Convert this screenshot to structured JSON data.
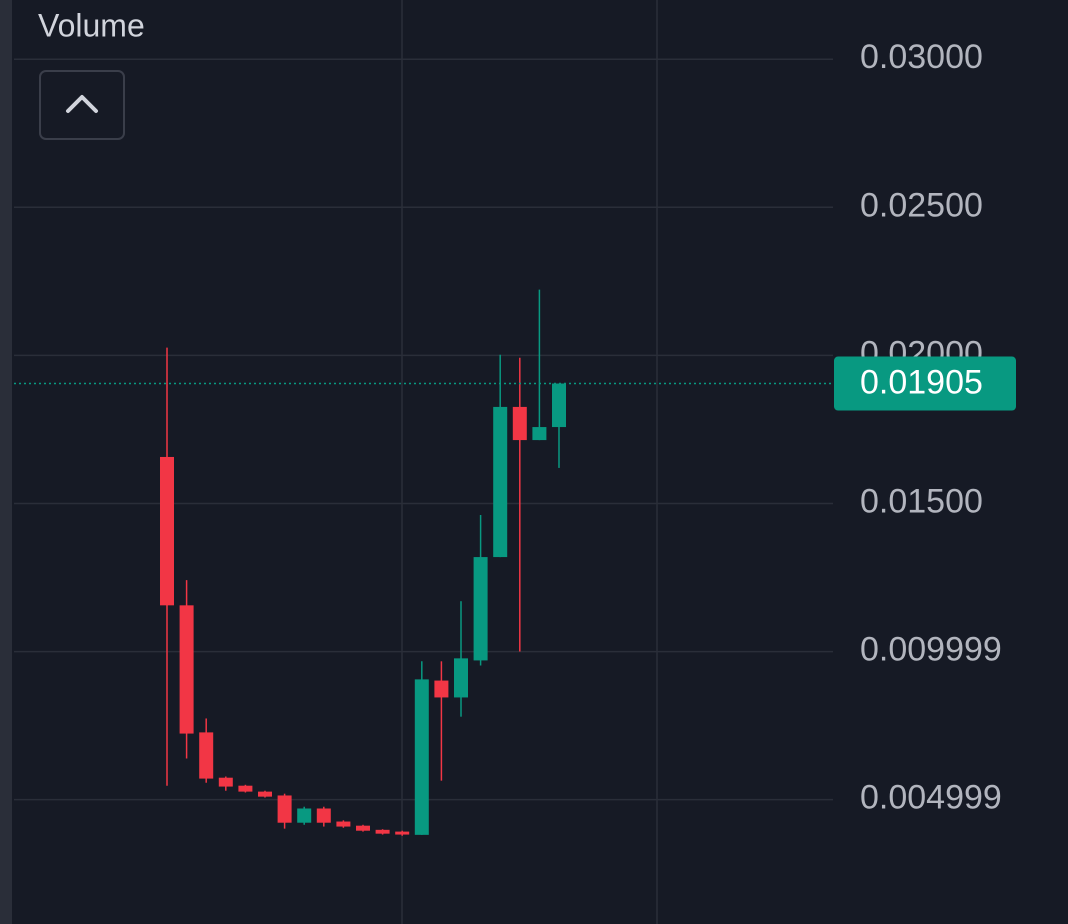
{
  "chart_data": {
    "type": "candlestick",
    "title": "Volume",
    "categories": [
      null,
      null,
      null,
      null,
      null,
      null,
      null,
      null,
      null,
      null,
      null,
      null,
      null,
      null,
      null,
      null,
      null,
      null,
      null,
      null,
      null
    ],
    "open": [
      0.01657,
      0.01156,
      0.00727,
      0.00574,
      0.00547,
      0.00527,
      0.00514,
      0.00422,
      0.0047,
      0.00426,
      0.00412,
      0.00398,
      0.00392,
      0.00381,
      0.00902,
      0.00845,
      0.0097,
      0.01319,
      0.01826,
      0.01714,
      0.01758
    ],
    "high": [
      0.02026,
      0.01241,
      0.00774,
      0.00578,
      0.0055,
      0.0053,
      0.0052,
      0.00476,
      0.00476,
      0.0043,
      0.00415,
      0.004,
      0.00395,
      0.00967,
      0.00967,
      0.0117,
      0.01461,
      0.02002,
      0.01992,
      0.02222,
      0.01905
    ],
    "low": [
      0.00547,
      0.00639,
      0.00557,
      0.0053,
      0.00524,
      0.00507,
      0.00402,
      0.00415,
      0.00409,
      0.00405,
      0.00392,
      0.00382,
      0.00378,
      0.00381,
      0.00564,
      0.0078,
      0.00953,
      0.01319,
      0.01,
      0.01714,
      0.0162
    ],
    "close": [
      0.01156,
      0.00723,
      0.00571,
      0.00544,
      0.00527,
      0.0051,
      0.00422,
      0.0047,
      0.00422,
      0.00409,
      0.00395,
      0.00385,
      0.00382,
      0.00906,
      0.00845,
      0.00977,
      0.01319,
      0.01826,
      0.01714,
      0.01758,
      0.01905
    ],
    "up_color": "#089981",
    "down_color": "#f23645",
    "ylim": [
      0.0008,
      0.032
    ],
    "yticks": [
      {
        "value": 0.03,
        "label": "0.03000"
      },
      {
        "value": 0.025,
        "label": "0.02500"
      },
      {
        "value": 0.02,
        "label": "0.02000"
      },
      {
        "value": 0.015,
        "label": "0.01500"
      },
      0.009999,
      0.004999
    ],
    "grid": true,
    "last_price": {
      "value": 0.01905,
      "label": "0.01905"
    }
  }
}
